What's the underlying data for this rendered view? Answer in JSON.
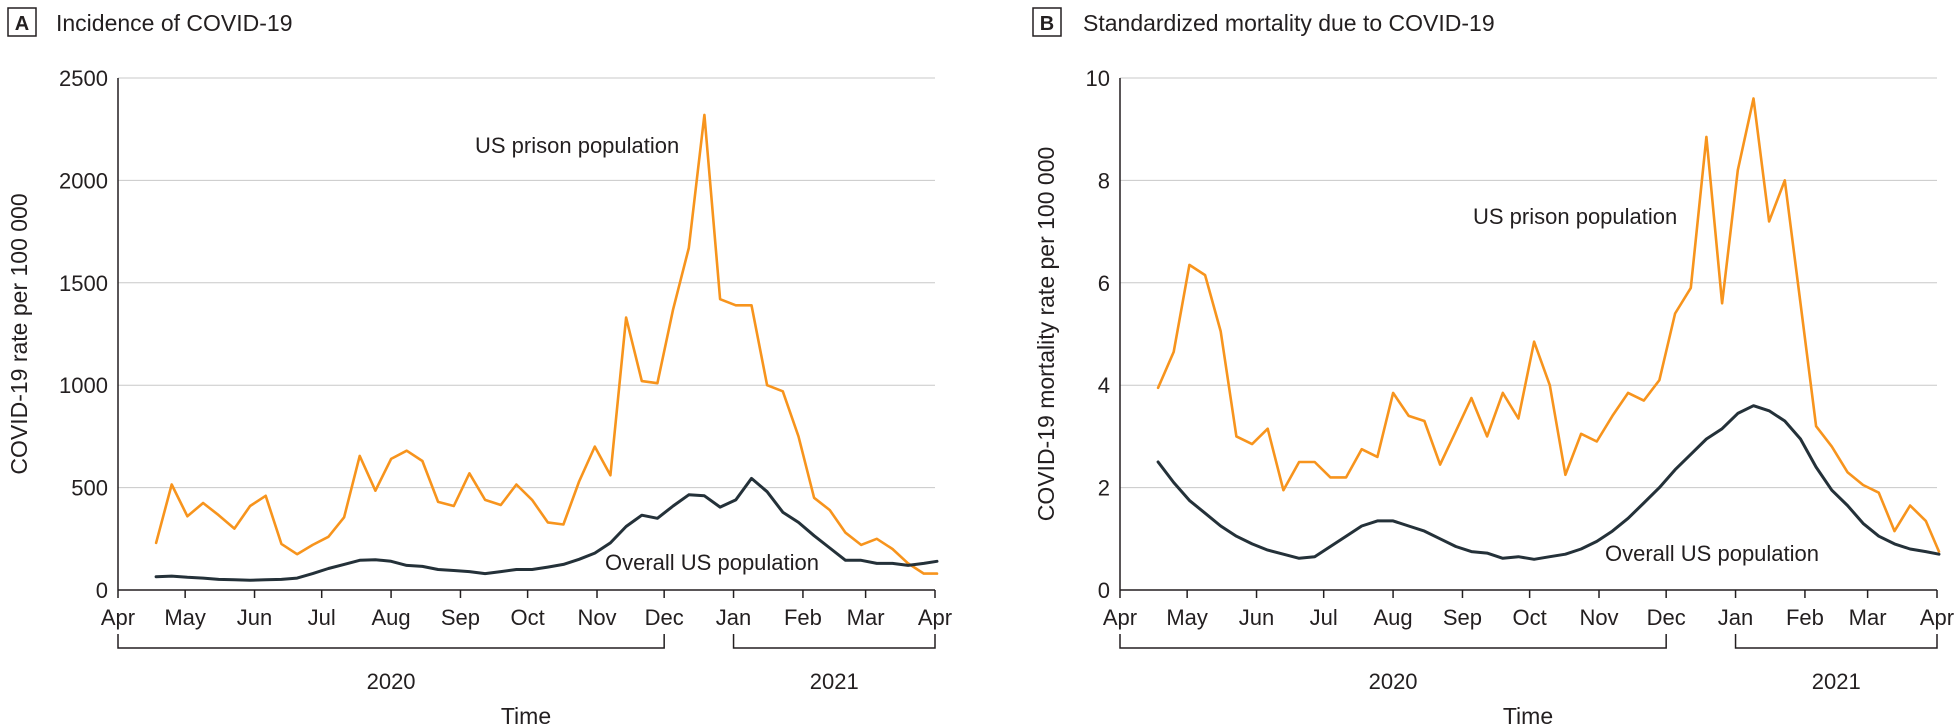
{
  "chart_data": [
    {
      "type": "line",
      "panel_tag": "A",
      "title": "Incidence of COVID-19",
      "xlabel": "Time",
      "ylabel": "COVID-19 rate per 100 000",
      "ylim": [
        0,
        2500
      ],
      "yticks": [
        0,
        500,
        1000,
        1500,
        2000,
        2500
      ],
      "xlim": [
        "2020-04-01",
        "2021-04-01"
      ],
      "month_ticks": [
        {
          "date": "2020-04-01",
          "label": "Apr"
        },
        {
          "date": "2020-05-01",
          "label": "May"
        },
        {
          "date": "2020-06-01",
          "label": "Jun"
        },
        {
          "date": "2020-07-01",
          "label": "Jul"
        },
        {
          "date": "2020-08-01",
          "label": "Aug"
        },
        {
          "date": "2020-09-01",
          "label": "Sep"
        },
        {
          "date": "2020-10-01",
          "label": "Oct"
        },
        {
          "date": "2020-11-01",
          "label": "Nov"
        },
        {
          "date": "2020-12-01",
          "label": "Dec"
        },
        {
          "date": "2021-01-01",
          "label": "Jan"
        },
        {
          "date": "2021-02-01",
          "label": "Feb"
        },
        {
          "date": "2021-03-01",
          "label": "Mar"
        },
        {
          "date": "2021-04-01",
          "label": "Apr"
        }
      ],
      "year_brackets": [
        {
          "label": "2020",
          "start": "2020-04-01",
          "end": "2020-12-01"
        },
        {
          "label": "2021",
          "start": "2021-01-01",
          "end": "2021-04-01"
        }
      ],
      "grid": true,
      "series": [
        {
          "name": "US prison population",
          "color": "#f7941d",
          "x": [
            "2020-04-18",
            "2020-04-25",
            "2020-05-02",
            "2020-05-09",
            "2020-05-16",
            "2020-05-23",
            "2020-05-30",
            "2020-06-06",
            "2020-06-13",
            "2020-06-20",
            "2020-06-27",
            "2020-07-04",
            "2020-07-11",
            "2020-07-18",
            "2020-07-25",
            "2020-08-01",
            "2020-08-08",
            "2020-08-15",
            "2020-08-22",
            "2020-08-29",
            "2020-09-05",
            "2020-09-12",
            "2020-09-19",
            "2020-09-26",
            "2020-10-03",
            "2020-10-10",
            "2020-10-17",
            "2020-10-24",
            "2020-10-31",
            "2020-11-07",
            "2020-11-14",
            "2020-11-21",
            "2020-11-28",
            "2020-12-05",
            "2020-12-12",
            "2020-12-19",
            "2020-12-26",
            "2021-01-02",
            "2021-01-09",
            "2021-01-16",
            "2021-01-23",
            "2021-01-30",
            "2021-02-06",
            "2021-02-13",
            "2021-02-20",
            "2021-02-27",
            "2021-03-06",
            "2021-03-13",
            "2021-03-20",
            "2021-03-27",
            "2021-04-03"
          ],
          "values": [
            230,
            515,
            360,
            425,
            365,
            300,
            410,
            460,
            225,
            175,
            220,
            260,
            355,
            655,
            485,
            640,
            680,
            630,
            430,
            410,
            570,
            440,
            415,
            515,
            440,
            330,
            320,
            530,
            700,
            560,
            1330,
            1020,
            1010,
            1370,
            1670,
            2320,
            1420,
            1390,
            1390,
            1000,
            970,
            750,
            450,
            390,
            280,
            220,
            250,
            200,
            130,
            80,
            80
          ]
        },
        {
          "name": "Overall US population",
          "color": "#243139",
          "x": [
            "2020-04-18",
            "2020-04-25",
            "2020-05-02",
            "2020-05-09",
            "2020-05-16",
            "2020-05-23",
            "2020-05-30",
            "2020-06-06",
            "2020-06-13",
            "2020-06-20",
            "2020-06-27",
            "2020-07-04",
            "2020-07-11",
            "2020-07-18",
            "2020-07-25",
            "2020-08-01",
            "2020-08-08",
            "2020-08-15",
            "2020-08-22",
            "2020-08-29",
            "2020-09-05",
            "2020-09-12",
            "2020-09-19",
            "2020-09-26",
            "2020-10-03",
            "2020-10-10",
            "2020-10-17",
            "2020-10-24",
            "2020-10-31",
            "2020-11-07",
            "2020-11-14",
            "2020-11-21",
            "2020-11-28",
            "2020-12-05",
            "2020-12-12",
            "2020-12-19",
            "2020-12-26",
            "2021-01-02",
            "2021-01-09",
            "2021-01-16",
            "2021-01-23",
            "2021-01-30",
            "2021-02-06",
            "2021-02-13",
            "2021-02-20",
            "2021-02-27",
            "2021-03-06",
            "2021-03-13",
            "2021-03-20",
            "2021-03-27",
            "2021-04-03"
          ],
          "values": [
            65,
            68,
            62,
            58,
            52,
            50,
            48,
            50,
            52,
            58,
            80,
            105,
            125,
            145,
            148,
            140,
            120,
            115,
            100,
            95,
            90,
            80,
            90,
            100,
            100,
            112,
            125,
            150,
            180,
            230,
            310,
            365,
            350,
            410,
            465,
            460,
            405,
            440,
            545,
            480,
            380,
            330,
            265,
            205,
            145,
            145,
            130,
            130,
            120,
            130,
            140
          ]
        }
      ],
      "annotations": [
        {
          "text": "US prison population",
          "series": 0
        },
        {
          "text": "Overall US population",
          "series": 1
        }
      ]
    },
    {
      "type": "line",
      "panel_tag": "B",
      "title": "Standardized mortality due to COVID-19",
      "xlabel": "Time",
      "ylabel": "COVID-19 mortality rate per 100 000",
      "ylim": [
        0,
        10
      ],
      "yticks": [
        0,
        2,
        4,
        6,
        8,
        10
      ],
      "xlim": [
        "2020-04-01",
        "2021-04-01"
      ],
      "month_ticks": [
        {
          "date": "2020-04-01",
          "label": "Apr"
        },
        {
          "date": "2020-05-01",
          "label": "May"
        },
        {
          "date": "2020-06-01",
          "label": "Jun"
        },
        {
          "date": "2020-07-01",
          "label": "Jul"
        },
        {
          "date": "2020-08-01",
          "label": "Aug"
        },
        {
          "date": "2020-09-01",
          "label": "Sep"
        },
        {
          "date": "2020-10-01",
          "label": "Oct"
        },
        {
          "date": "2020-11-01",
          "label": "Nov"
        },
        {
          "date": "2020-12-01",
          "label": "Dec"
        },
        {
          "date": "2021-01-01",
          "label": "Jan"
        },
        {
          "date": "2021-02-01",
          "label": "Feb"
        },
        {
          "date": "2021-03-01",
          "label": "Mar"
        },
        {
          "date": "2021-04-01",
          "label": "Apr"
        }
      ],
      "year_brackets": [
        {
          "label": "2020",
          "start": "2020-04-01",
          "end": "2020-12-01"
        },
        {
          "label": "2021",
          "start": "2021-01-01",
          "end": "2021-04-01"
        }
      ],
      "grid": true,
      "series": [
        {
          "name": "US prison population",
          "color": "#f7941d",
          "x": [
            "2020-04-18",
            "2020-04-25",
            "2020-05-02",
            "2020-05-09",
            "2020-05-16",
            "2020-05-23",
            "2020-05-30",
            "2020-06-06",
            "2020-06-13",
            "2020-06-20",
            "2020-06-27",
            "2020-07-04",
            "2020-07-11",
            "2020-07-18",
            "2020-07-25",
            "2020-08-01",
            "2020-08-08",
            "2020-08-15",
            "2020-08-22",
            "2020-08-29",
            "2020-09-05",
            "2020-09-12",
            "2020-09-19",
            "2020-09-26",
            "2020-10-03",
            "2020-10-10",
            "2020-10-17",
            "2020-10-24",
            "2020-10-31",
            "2020-11-07",
            "2020-11-14",
            "2020-11-21",
            "2020-11-28",
            "2020-12-05",
            "2020-12-12",
            "2020-12-19",
            "2020-12-26",
            "2021-01-02",
            "2021-01-09",
            "2021-01-16",
            "2021-01-23",
            "2021-01-30",
            "2021-02-06",
            "2021-02-13",
            "2021-02-20",
            "2021-02-27",
            "2021-03-06",
            "2021-03-13",
            "2021-03-20",
            "2021-03-27",
            "2021-04-03"
          ],
          "values": [
            3.95,
            4.65,
            6.35,
            6.15,
            5.05,
            3.0,
            2.85,
            3.15,
            1.95,
            2.5,
            2.5,
            2.2,
            2.2,
            2.75,
            2.6,
            3.85,
            3.4,
            3.3,
            2.45,
            3.1,
            3.75,
            3.0,
            3.85,
            3.35,
            4.85,
            4.0,
            2.25,
            3.05,
            2.9,
            3.4,
            3.85,
            3.7,
            4.1,
            5.4,
            5.9,
            8.85,
            5.6,
            8.2,
            9.6,
            7.2,
            8.0,
            5.6,
            3.2,
            2.8,
            2.3,
            2.05,
            1.9,
            1.15,
            1.65,
            1.35,
            0.75
          ]
        },
        {
          "name": "Overall US population",
          "color": "#243139",
          "x": [
            "2020-04-18",
            "2020-04-25",
            "2020-05-02",
            "2020-05-09",
            "2020-05-16",
            "2020-05-23",
            "2020-05-30",
            "2020-06-06",
            "2020-06-13",
            "2020-06-20",
            "2020-06-27",
            "2020-07-04",
            "2020-07-11",
            "2020-07-18",
            "2020-07-25",
            "2020-08-01",
            "2020-08-08",
            "2020-08-15",
            "2020-08-22",
            "2020-08-29",
            "2020-09-05",
            "2020-09-12",
            "2020-09-19",
            "2020-09-26",
            "2020-10-03",
            "2020-10-10",
            "2020-10-17",
            "2020-10-24",
            "2020-10-31",
            "2020-11-07",
            "2020-11-14",
            "2020-11-21",
            "2020-11-28",
            "2020-12-05",
            "2020-12-12",
            "2020-12-19",
            "2020-12-26",
            "2021-01-02",
            "2021-01-09",
            "2021-01-16",
            "2021-01-23",
            "2021-01-30",
            "2021-02-06",
            "2021-02-13",
            "2021-02-20",
            "2021-02-27",
            "2021-03-06",
            "2021-03-13",
            "2021-03-20",
            "2021-03-27",
            "2021-04-03"
          ],
          "values": [
            2.5,
            2.1,
            1.75,
            1.5,
            1.25,
            1.05,
            0.9,
            0.78,
            0.7,
            0.62,
            0.65,
            0.85,
            1.05,
            1.25,
            1.35,
            1.35,
            1.25,
            1.15,
            1.0,
            0.85,
            0.75,
            0.72,
            0.62,
            0.65,
            0.6,
            0.65,
            0.7,
            0.8,
            0.95,
            1.15,
            1.4,
            1.7,
            2.0,
            2.35,
            2.65,
            2.95,
            3.15,
            3.45,
            3.6,
            3.5,
            3.3,
            2.95,
            2.4,
            1.95,
            1.65,
            1.3,
            1.05,
            0.9,
            0.8,
            0.75,
            0.7
          ]
        }
      ],
      "annotations": [
        {
          "text": "US prison population",
          "series": 0
        },
        {
          "text": "Overall US population",
          "series": 1
        }
      ]
    }
  ]
}
